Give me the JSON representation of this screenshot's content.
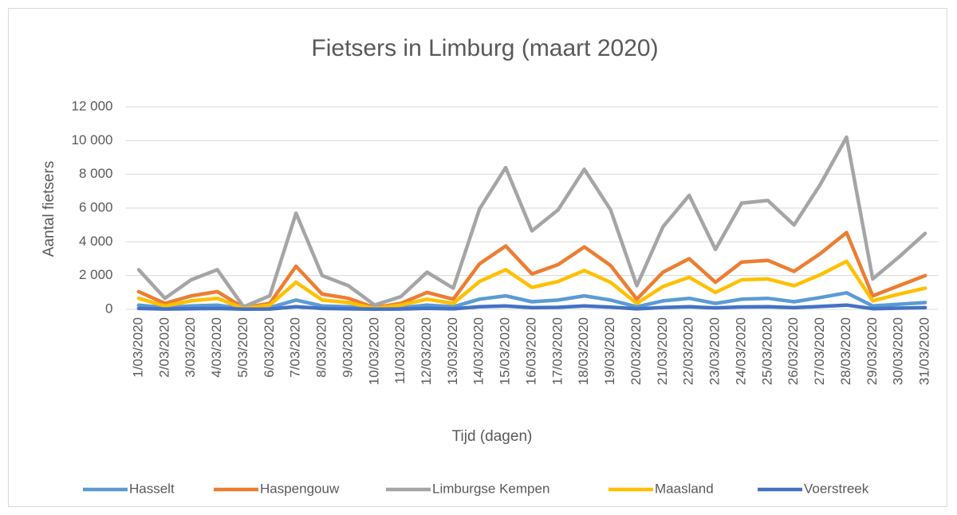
{
  "chart_data": {
    "type": "line",
    "title": "Fietsers in Limburg (maart 2020)",
    "x_label": "Tijd (dagen)",
    "y_label": "Aantal  fietsers",
    "categories": [
      "1/03/2020",
      "2/03/2020",
      "3/03/2020",
      "4/03/2020",
      "5/03/2020",
      "6/03/2020",
      "7/03/2020",
      "8/03/2020",
      "9/03/2020",
      "10/03/2020",
      "11/03/2020",
      "12/03/2020",
      "13/03/2020",
      "14/03/2020",
      "15/03/2020",
      "16/03/2020",
      "17/03/2020",
      "18/03/2020",
      "19/03/2020",
      "20/03/2020",
      "21/03/2020",
      "22/03/2020",
      "23/03/2020",
      "24/03/2020",
      "25/03/2020",
      "26/03/2020",
      "27/03/2020",
      "28/03/2020",
      "29/03/2020",
      "30/03/2020",
      "31/03/2020"
    ],
    "series": [
      {
        "name": "Hasselt",
        "color": "#5b9bd5",
        "values": [
          250,
          100,
          200,
          250,
          30,
          100,
          550,
          200,
          150,
          30,
          100,
          250,
          150,
          600,
          800,
          450,
          550,
          800,
          550,
          150,
          500,
          650,
          350,
          600,
          650,
          450,
          700,
          980,
          200,
          300,
          400
        ]
      },
      {
        "name": "Haspengouw",
        "color": "#ed7d31",
        "values": [
          1050,
          350,
          800,
          1050,
          100,
          350,
          2550,
          900,
          650,
          100,
          350,
          1000,
          600,
          2700,
          3750,
          2100,
          2650,
          3700,
          2600,
          600,
          2200,
          3000,
          1600,
          2800,
          2900,
          2250,
          3300,
          4550,
          800,
          1400,
          2000
        ]
      },
      {
        "name": "Limburgse Kempen",
        "color": "#a5a5a5",
        "values": [
          2350,
          650,
          1750,
          2350,
          150,
          800,
          5700,
          2000,
          1400,
          250,
          750,
          2200,
          1250,
          5950,
          8400,
          4650,
          5900,
          8300,
          5900,
          1400,
          4900,
          6750,
          3550,
          6300,
          6450,
          5000,
          7400,
          10200,
          1800,
          3100,
          4500
        ]
      },
      {
        "name": "Maasland",
        "color": "#ffc000",
        "values": [
          650,
          200,
          500,
          650,
          50,
          250,
          1600,
          550,
          400,
          50,
          250,
          600,
          350,
          1650,
          2350,
          1300,
          1650,
          2300,
          1600,
          350,
          1350,
          1900,
          1000,
          1750,
          1800,
          1400,
          2050,
          2850,
          500,
          900,
          1250
        ]
      },
      {
        "name": "Voerstreek",
        "color": "#4472c4",
        "values": [
          50,
          20,
          40,
          50,
          10,
          20,
          150,
          50,
          30,
          10,
          20,
          60,
          30,
          150,
          200,
          100,
          120,
          200,
          130,
          30,
          110,
          150,
          80,
          140,
          150,
          100,
          170,
          250,
          40,
          70,
          100
        ]
      }
    ],
    "ylim": [
      0,
      12000
    ],
    "yticks": [
      0,
      {
        "value": 2000,
        "label": "2 000"
      },
      {
        "value": 4000,
        "label": "4 000"
      },
      {
        "value": 6000,
        "label": "6 000"
      },
      {
        "value": 8000,
        "label": "8 000"
      },
      {
        "value": 10000,
        "label": "10 000"
      },
      {
        "value": 12000,
        "label": "12 000"
      }
    ],
    "grid": true,
    "legend": "bottom"
  }
}
